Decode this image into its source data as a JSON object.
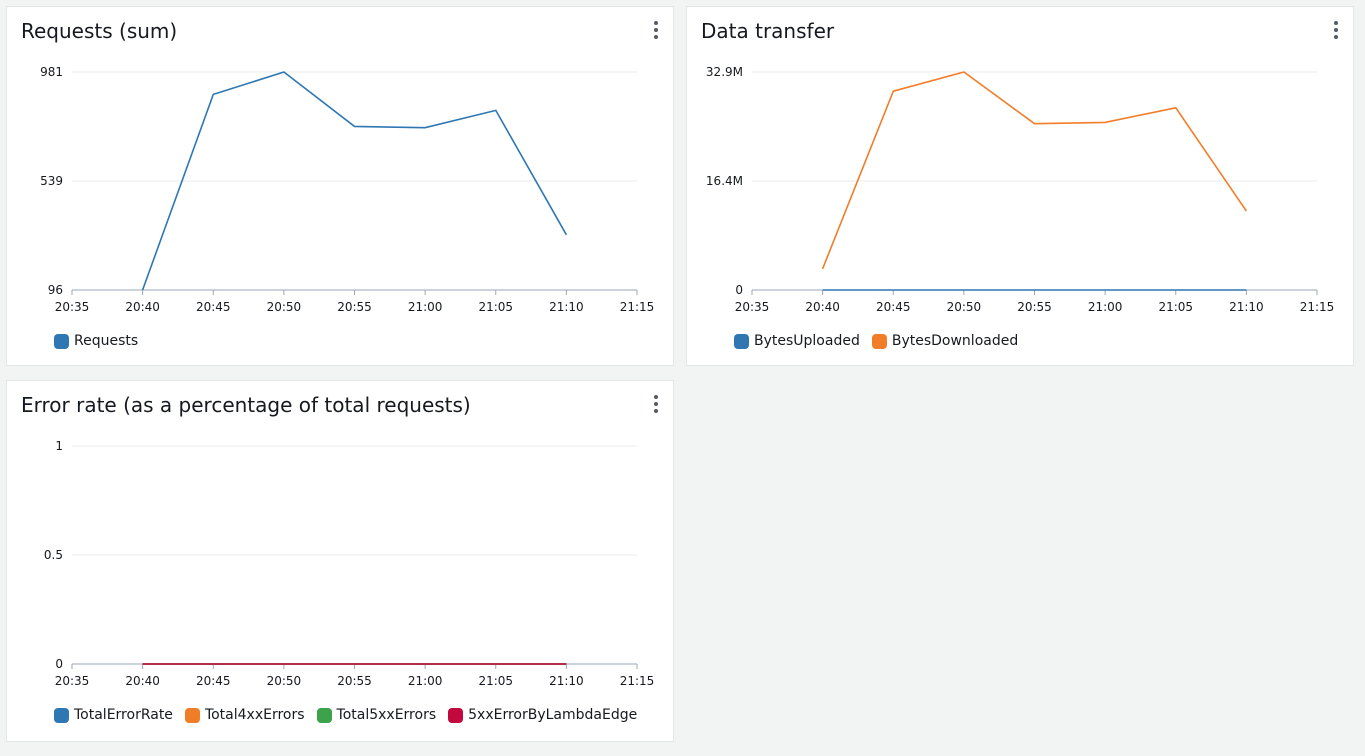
{
  "colors": {
    "blue": "#2e77b3",
    "orange": "#f17d28",
    "green": "#3ca34b",
    "red": "#c3083d",
    "grid": "#e9ebed",
    "axis": "#9ba7b6"
  },
  "widgets": {
    "requests": {
      "title": "Requests (sum)",
      "menu_icon": "more-vertical-icon",
      "legend": [
        {
          "label": "Requests",
          "color": "#2e77b3"
        }
      ]
    },
    "transfer": {
      "title": "Data transfer",
      "menu_icon": "more-vertical-icon",
      "legend": [
        {
          "label": "BytesUploaded",
          "color": "#2e77b3"
        },
        {
          "label": "BytesDownloaded",
          "color": "#f17d28"
        }
      ]
    },
    "errors": {
      "title": "Error rate (as a percentage of total requests)",
      "menu_icon": "more-vertical-icon",
      "legend": [
        {
          "label": "TotalErrorRate",
          "color": "#2e77b3"
        },
        {
          "label": "Total4xxErrors",
          "color": "#f17d28"
        },
        {
          "label": "Total5xxErrors",
          "color": "#3ca34b"
        },
        {
          "label": "5xxErrorByLambdaEdge",
          "color": "#c3083d"
        }
      ]
    }
  },
  "chart_data": [
    {
      "id": "requests",
      "type": "line",
      "title": "Requests (sum)",
      "x": [
        "20:35",
        "20:40",
        "20:45",
        "20:50",
        "20:55",
        "21:00",
        "21:05",
        "21:10",
        "21:15"
      ],
      "ytick_labels": [
        "96",
        "539",
        "981"
      ],
      "ylim": [
        96,
        981
      ],
      "grid": true,
      "legend_position": "bottom-left",
      "series": [
        {
          "name": "Requests",
          "color": "#2e77b3",
          "points": [
            [
              "20:40",
              96
            ],
            [
              "20:45",
              890
            ],
            [
              "20:50",
              981
            ],
            [
              "20:55",
              760
            ],
            [
              "21:00",
              755
            ],
            [
              "21:05",
              825
            ],
            [
              "21:10",
              320
            ]
          ]
        }
      ]
    },
    {
      "id": "transfer",
      "type": "line",
      "title": "Data transfer",
      "x": [
        "20:35",
        "20:40",
        "20:45",
        "20:50",
        "20:55",
        "21:00",
        "21:05",
        "21:10",
        "21:15"
      ],
      "ytick_labels": [
        "0",
        "16.4M",
        "32.9M"
      ],
      "ylim": [
        0,
        32.9
      ],
      "y_unit": "M",
      "grid": true,
      "legend_position": "bottom-left",
      "series": [
        {
          "name": "BytesUploaded",
          "color": "#2e77b3",
          "points": [
            [
              "20:40",
              0
            ],
            [
              "20:45",
              0
            ],
            [
              "20:50",
              0
            ],
            [
              "20:55",
              0
            ],
            [
              "21:00",
              0
            ],
            [
              "21:05",
              0
            ],
            [
              "21:10",
              0
            ]
          ]
        },
        {
          "name": "BytesDownloaded",
          "color": "#f17d28",
          "points": [
            [
              "20:40",
              3.2
            ],
            [
              "20:45",
              30.0
            ],
            [
              "20:50",
              32.9
            ],
            [
              "20:55",
              25.1
            ],
            [
              "21:00",
              25.3
            ],
            [
              "21:05",
              27.5
            ],
            [
              "21:10",
              11.9
            ]
          ]
        }
      ]
    },
    {
      "id": "errors",
      "type": "line",
      "title": "Error rate (as a percentage of total requests)",
      "x": [
        "20:35",
        "20:40",
        "20:45",
        "20:50",
        "20:55",
        "21:00",
        "21:05",
        "21:10",
        "21:15"
      ],
      "ytick_labels": [
        "0",
        "0.5",
        "1"
      ],
      "ylim": [
        0,
        1
      ],
      "grid": true,
      "legend_position": "bottom-left",
      "series": [
        {
          "name": "TotalErrorRate",
          "color": "#2e77b3",
          "points": [
            [
              "20:40",
              0
            ],
            [
              "21:10",
              0
            ]
          ]
        },
        {
          "name": "Total4xxErrors",
          "color": "#f17d28",
          "points": [
            [
              "20:40",
              0
            ],
            [
              "21:10",
              0
            ]
          ]
        },
        {
          "name": "Total5xxErrors",
          "color": "#3ca34b",
          "points": [
            [
              "20:40",
              0
            ],
            [
              "21:10",
              0
            ]
          ]
        },
        {
          "name": "5xxErrorByLambdaEdge",
          "color": "#c3083d",
          "points": [
            [
              "20:40",
              0
            ],
            [
              "21:10",
              0
            ]
          ]
        }
      ]
    }
  ]
}
